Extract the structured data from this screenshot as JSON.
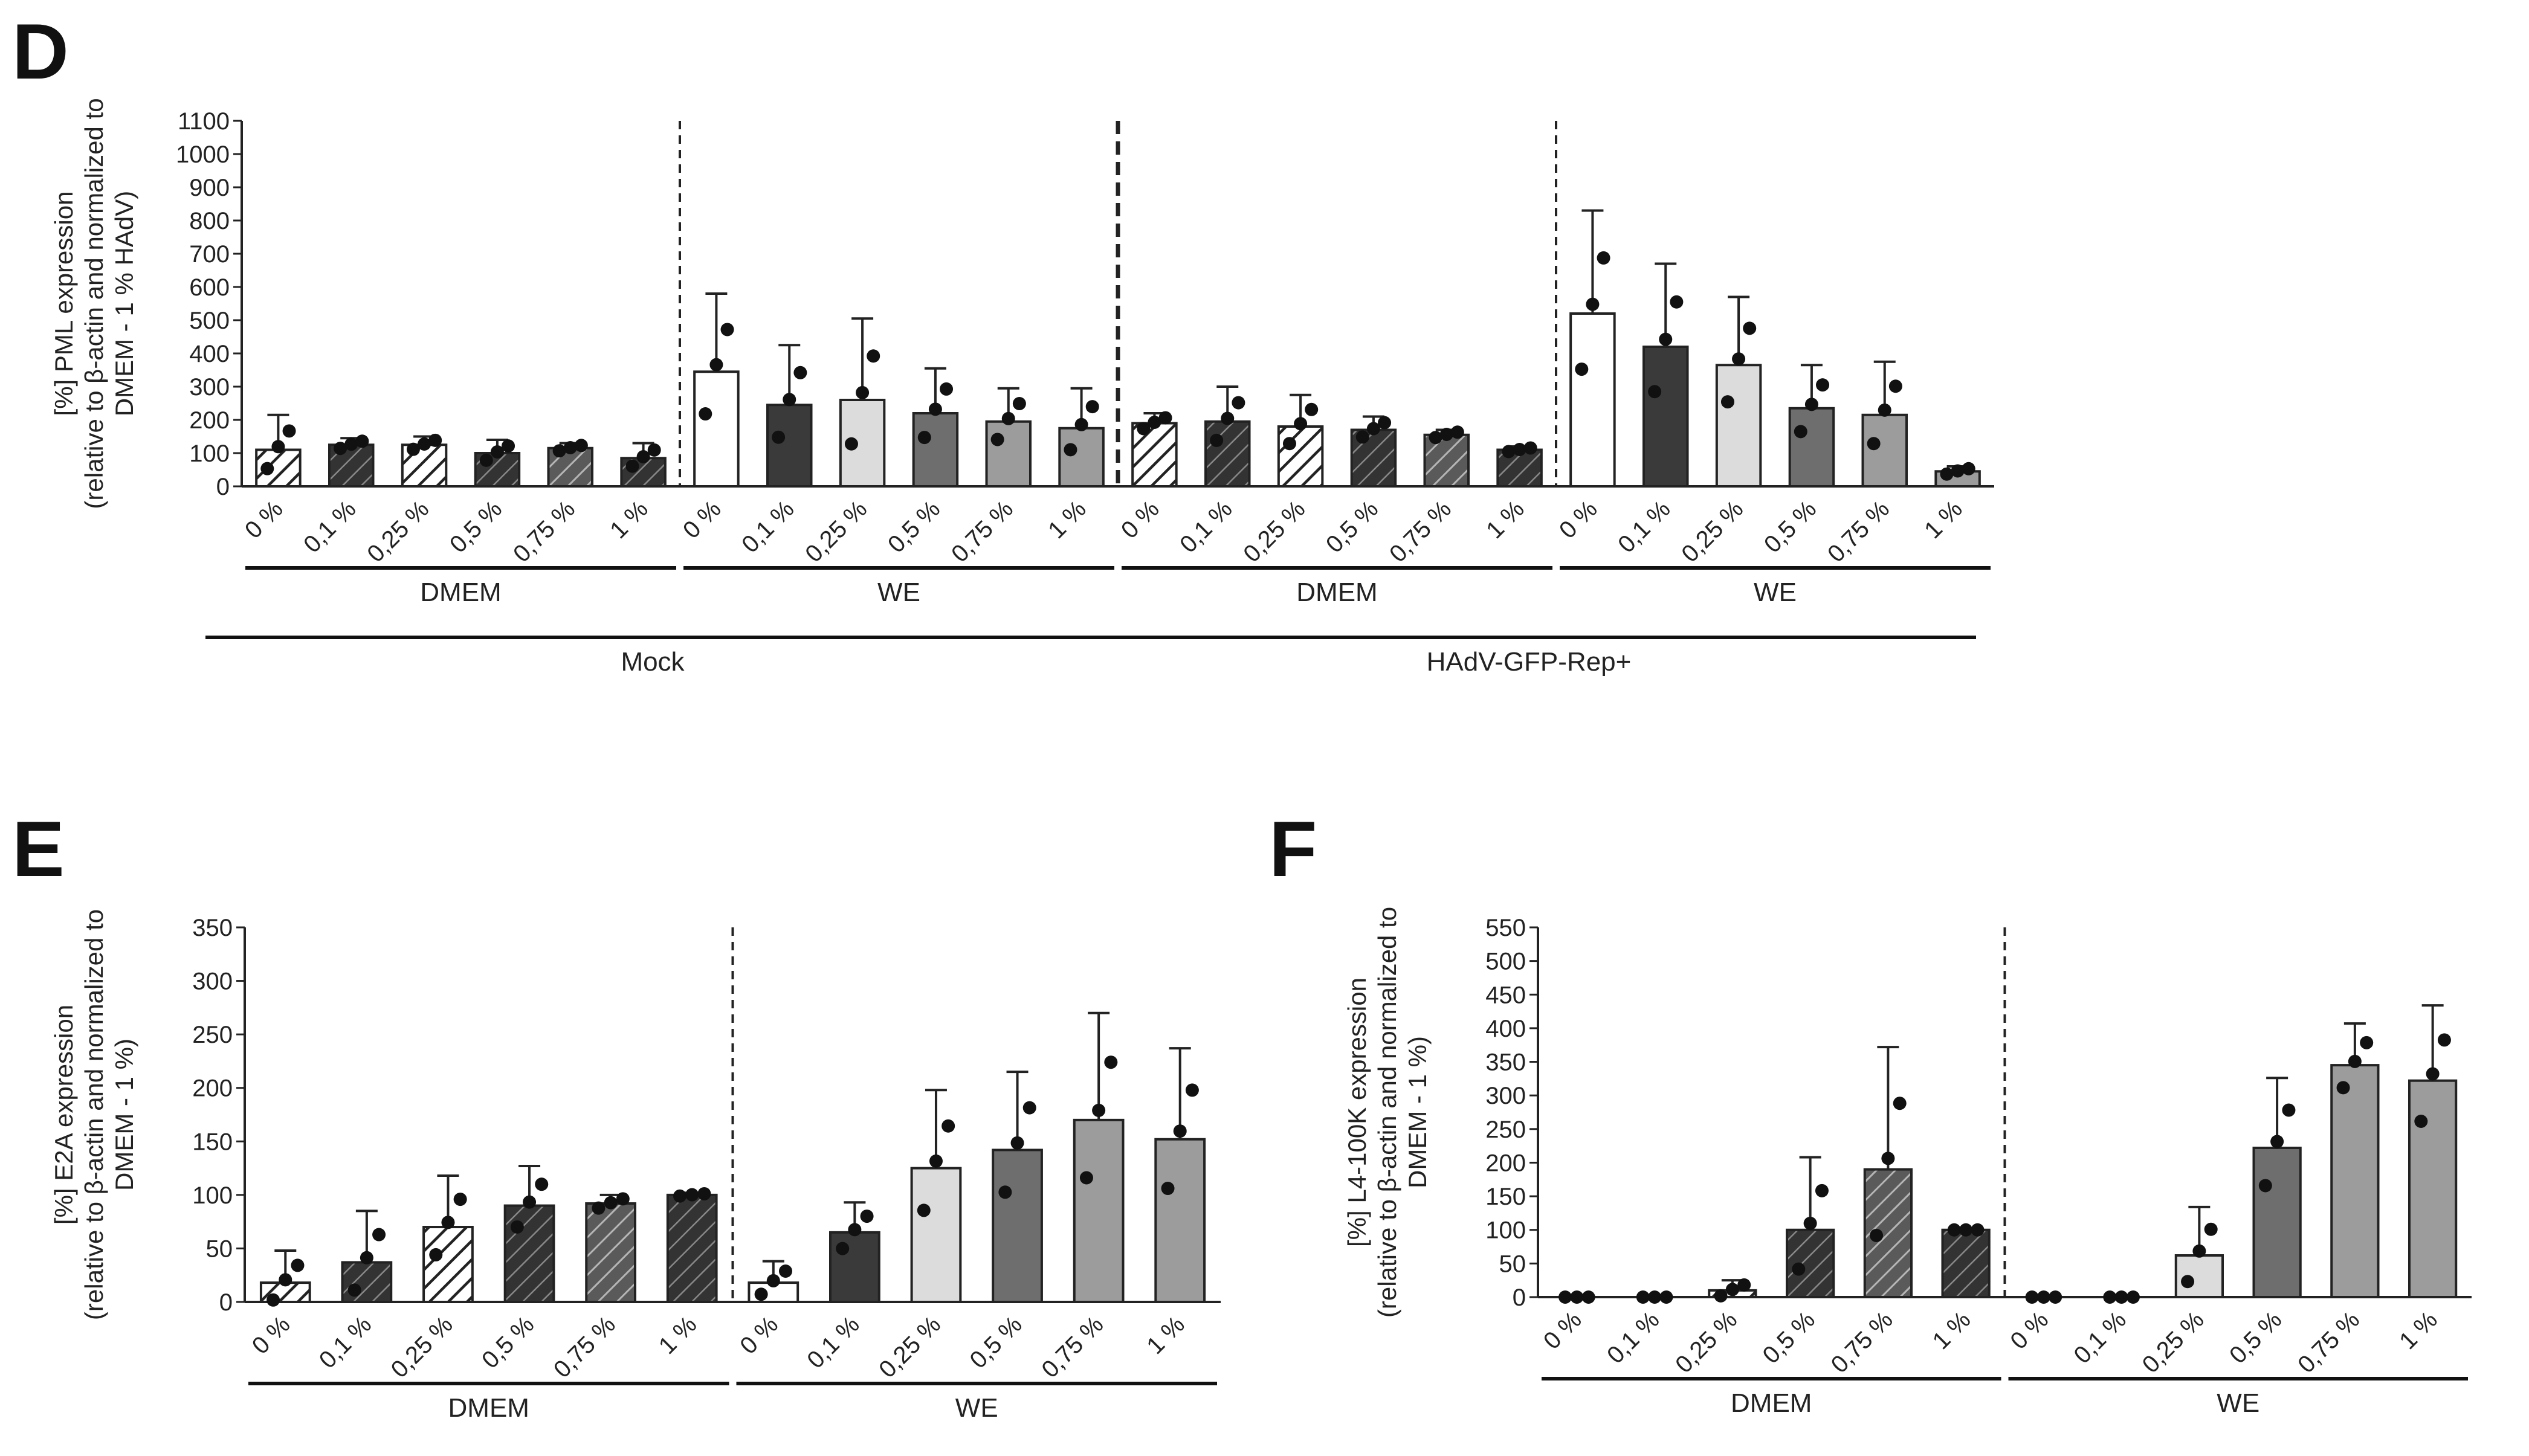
{
  "chart_data": [
    {
      "panel": "D",
      "type": "bar",
      "ylabel_lines": [
        "[%]  PML expression",
        "(relative to β-actin and normalized to",
        "DMEM - 1  % HAdV)"
      ],
      "ylim": [
        0,
        1100
      ],
      "yticks": [
        "0",
        "100",
        "200",
        "300",
        "400",
        "500",
        "600",
        "700",
        "800",
        "900",
        "1000",
        "1100"
      ],
      "categories": [
        "0 %",
        "0,1 %",
        "0,25 %",
        "0,5 %",
        "0,75 %",
        "1 %",
        "0 %",
        "0,1 %",
        "0,25 %",
        "0,5 %",
        "0,75 %",
        "1 %",
        "0 %",
        "0,1 %",
        "0,25 %",
        "0,5 %",
        "0,75 %",
        "1 %",
        "0 %",
        "0,1 %",
        "0,25 %",
        "0,5 %",
        "0,75 %",
        "1 %"
      ],
      "values": [
        110,
        125,
        125,
        100,
        115,
        85,
        345,
        245,
        260,
        220,
        195,
        175,
        190,
        195,
        180,
        170,
        155,
        110,
        520,
        420,
        365,
        235,
        215,
        45
      ],
      "errors": [
        105,
        20,
        25,
        40,
        15,
        45,
        235,
        180,
        245,
        135,
        100,
        120,
        30,
        105,
        95,
        40,
        15,
        10,
        310,
        250,
        205,
        130,
        160,
        15
      ],
      "styles": [
        "hatchW",
        "hatchD",
        "hatchW",
        "hatchD",
        "hatchM",
        "hatchD",
        "white",
        "dark",
        "light",
        "mid",
        "grey",
        "grey",
        "hatchW",
        "hatchD",
        "hatchW",
        "hatchD",
        "hatchM",
        "hatchD",
        "white",
        "dark",
        "light",
        "mid",
        "grey",
        "grey"
      ],
      "dashed_after": [
        5,
        11,
        17
      ],
      "heavy_dashed_after": 11,
      "groups": [
        {
          "label": "DMEM",
          "from": 0,
          "to": 5
        },
        {
          "label": "WE",
          "from": 6,
          "to": 11
        },
        {
          "label": "DMEM",
          "from": 12,
          "to": 17
        },
        {
          "label": "WE",
          "from": 18,
          "to": 23
        }
      ],
      "supergroups": [
        {
          "label": "Mock",
          "from": 0,
          "to": 11
        },
        {
          "label": "HAdV-GFP-Rep+",
          "from": 12,
          "to": 23
        }
      ]
    },
    {
      "panel": "E",
      "type": "bar",
      "ylabel_lines": [
        "[%]  E2A expression",
        "(relative to β-actin and normalized to",
        "DMEM - 1  %)"
      ],
      "ylim": [
        0,
        350
      ],
      "yticks": [
        "0",
        "50",
        "100",
        "150",
        "200",
        "250",
        "300",
        "350"
      ],
      "categories": [
        "0 %",
        "0,1 %",
        "0,25 %",
        "0,5 %",
        "0,75 %",
        "1 %",
        "0 %",
        "0,1 %",
        "0,25 %",
        "0,5 %",
        "0,75 %",
        "1 %"
      ],
      "values": [
        18,
        37,
        70,
        90,
        92,
        100,
        18,
        65,
        125,
        142,
        170,
        152
      ],
      "errors": [
        30,
        48,
        48,
        37,
        8,
        2,
        20,
        28,
        73,
        73,
        100,
        85
      ],
      "styles": [
        "hatchW",
        "hatchD",
        "hatchW",
        "hatchD",
        "hatchM",
        "hatchD",
        "white",
        "dark",
        "light",
        "mid",
        "grey",
        "grey"
      ],
      "dashed_after": [
        5
      ],
      "groups": [
        {
          "label": "DMEM",
          "from": 0,
          "to": 5
        },
        {
          "label": "WE",
          "from": 6,
          "to": 11
        }
      ]
    },
    {
      "panel": "F",
      "type": "bar",
      "ylabel_lines": [
        "[%]  L4-100K expression",
        "(relative to β-actin and normalized to",
        "DMEM - 1  %)"
      ],
      "ylim": [
        0,
        550
      ],
      "yticks": [
        "0",
        "50",
        "100",
        "150",
        "200",
        "250",
        "300",
        "350",
        "400",
        "450",
        "500",
        "550"
      ],
      "categories": [
        "0 %",
        "0,1 %",
        "0,25 %",
        "0,5 %",
        "0,75 %",
        "1 %",
        "0 %",
        "0,1 %",
        "0,25 %",
        "0,5 %",
        "0,75 %",
        "1 %"
      ],
      "values": [
        0,
        0,
        10,
        100,
        190,
        100,
        0,
        0,
        62,
        222,
        345,
        322
      ],
      "errors": [
        0,
        0,
        15,
        108,
        182,
        0,
        0,
        0,
        72,
        104,
        62,
        112
      ],
      "styles": [
        "hatchW",
        "hatchD",
        "hatchW",
        "hatchD",
        "hatchM",
        "hatchD",
        "white",
        "dark",
        "light",
        "mid",
        "grey",
        "grey"
      ],
      "dashed_after": [
        5
      ],
      "groups": [
        {
          "label": "DMEM",
          "from": 0,
          "to": 5
        },
        {
          "label": "WE",
          "from": 6,
          "to": 11
        }
      ]
    }
  ]
}
